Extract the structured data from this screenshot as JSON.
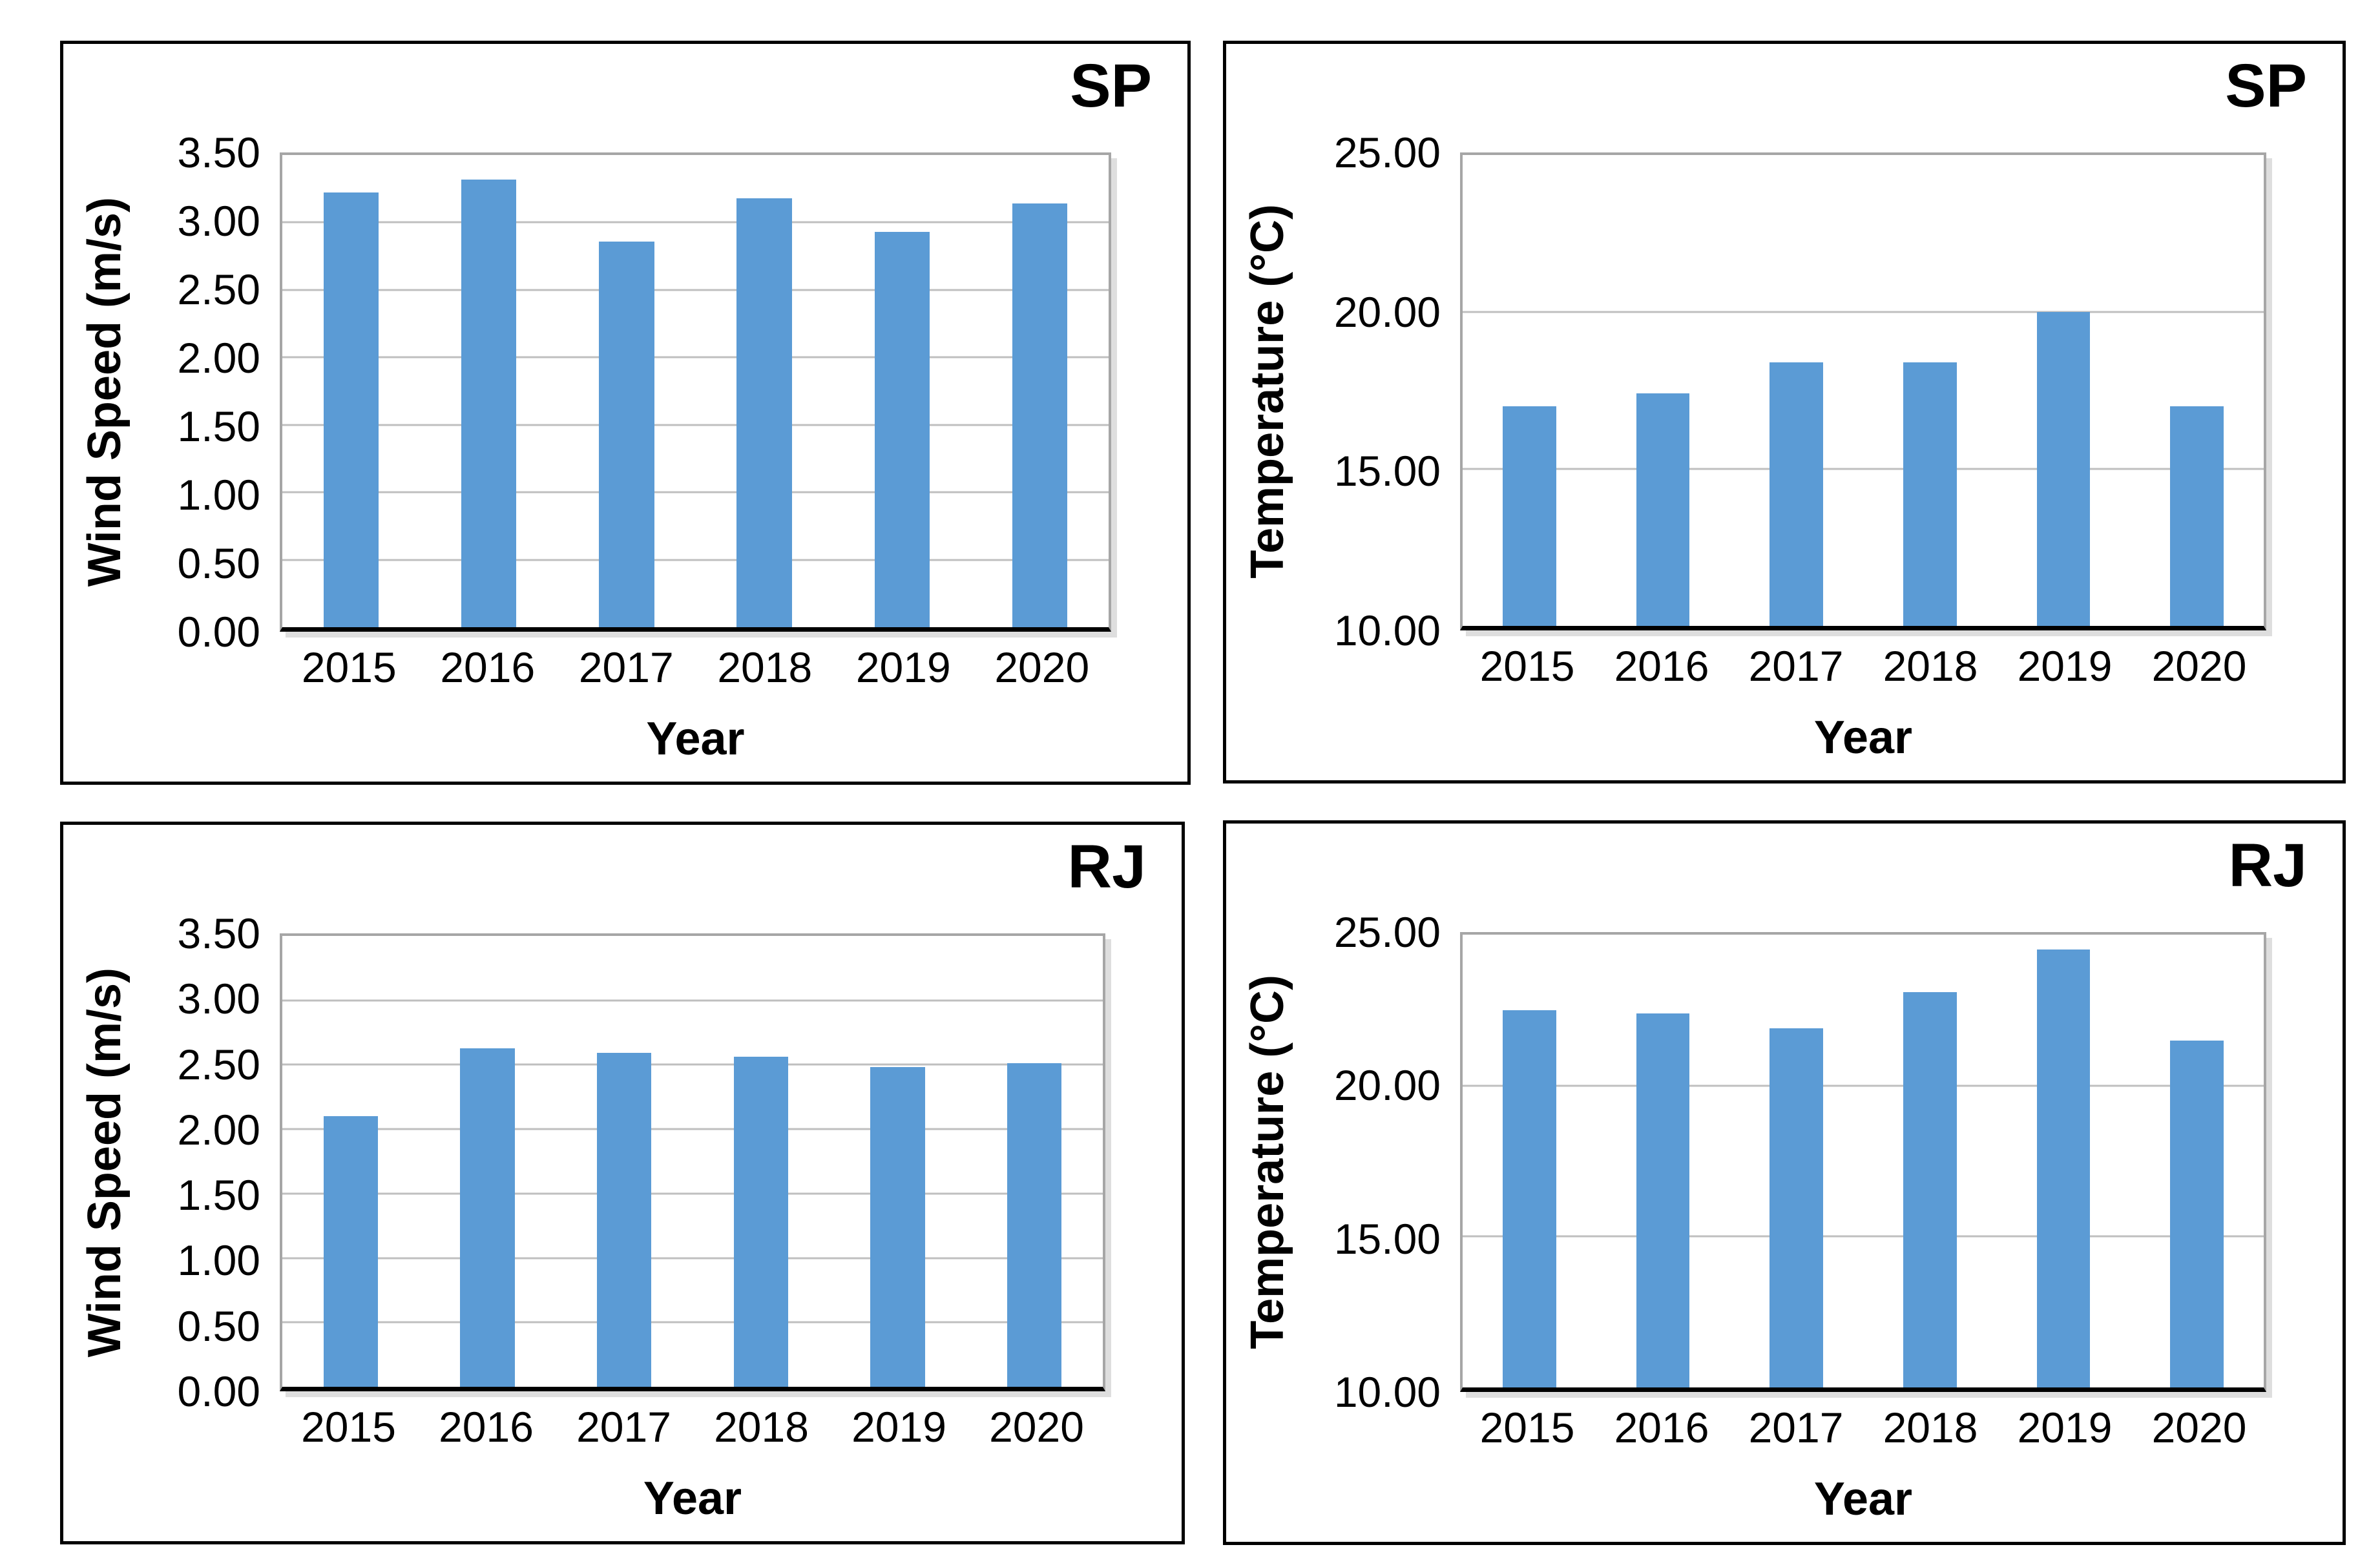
{
  "colors": {
    "bar": "#5B9BD5",
    "gridline": "#BFBFBF",
    "plot_border": "#A6A6A6",
    "baseline": "#000000",
    "panel_border": "#000000",
    "text": "#000000",
    "background": "#FFFFFF"
  },
  "chart_data": [
    {
      "type": "bar",
      "panel_label": "SP",
      "categories": [
        "2015",
        "2016",
        "2017",
        "2018",
        "2019",
        "2020"
      ],
      "values": [
        3.22,
        3.32,
        2.86,
        3.18,
        2.93,
        3.14
      ],
      "xlabel": "Year",
      "ylabel": "Wind Speed (m/s)",
      "ylim": [
        0,
        3.5
      ],
      "yticks": [
        0,
        0.5,
        1,
        1.5,
        2,
        2.5,
        3,
        3.5
      ],
      "ytick_labels": [
        "0.00",
        "0.50",
        "1.00",
        "1.50",
        "2.00",
        "2.50",
        "3.00",
        "3.50"
      ],
      "grid": true,
      "legend": "none"
    },
    {
      "type": "bar",
      "panel_label": "SP",
      "categories": [
        "2015",
        "2016",
        "2017",
        "2018",
        "2019",
        "2020"
      ],
      "values": [
        17.0,
        17.4,
        18.4,
        18.4,
        20.0,
        17.0
      ],
      "xlabel": "Year",
      "ylabel": "Temperature (°C)",
      "ylim": [
        10,
        25
      ],
      "yticks": [
        10,
        15,
        20,
        25
      ],
      "ytick_labels": [
        "10.00",
        "15.00",
        "20.00",
        "25.00"
      ],
      "grid": true,
      "legend": "none"
    },
    {
      "type": "bar",
      "panel_label": "RJ",
      "categories": [
        "2015",
        "2016",
        "2017",
        "2018",
        "2019",
        "2020"
      ],
      "values": [
        2.1,
        2.63,
        2.59,
        2.56,
        2.48,
        2.51
      ],
      "xlabel": "Year",
      "ylabel": "Wind Speed (m/s)",
      "ylim": [
        0,
        3.5
      ],
      "yticks": [
        0,
        0.5,
        1,
        1.5,
        2,
        2.5,
        3,
        3.5
      ],
      "ytick_labels": [
        "0.00",
        "0.50",
        "1.00",
        "1.50",
        "2.00",
        "2.50",
        "3.00",
        "3.50"
      ],
      "grid": true,
      "legend": "none"
    },
    {
      "type": "bar",
      "panel_label": "RJ",
      "categories": [
        "2015",
        "2016",
        "2017",
        "2018",
        "2019",
        "2020"
      ],
      "values": [
        22.5,
        22.4,
        21.9,
        23.1,
        24.5,
        21.5
      ],
      "xlabel": "Year",
      "ylabel": "Temperature (°C)",
      "ylim": [
        10,
        25
      ],
      "yticks": [
        10,
        15,
        20,
        25
      ],
      "ytick_labels": [
        "10.00",
        "15.00",
        "20.00",
        "25.00"
      ],
      "grid": true,
      "legend": "none"
    }
  ]
}
